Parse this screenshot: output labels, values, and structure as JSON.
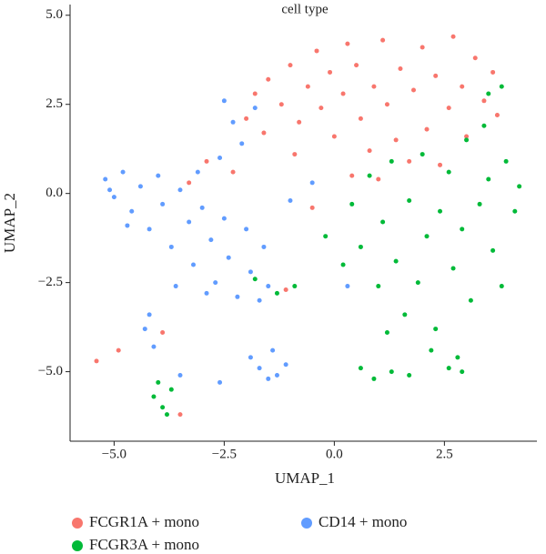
{
  "chart_data": {
    "type": "scatter",
    "title": "cell type",
    "x_label": "UMAP_1",
    "y_label": "UMAP_2",
    "xlim": [
      -6,
      4.6
    ],
    "ylim": [
      -6.95,
      5.3
    ],
    "xticks": [
      {
        "value": -5,
        "label": "−5.0"
      },
      {
        "value": -2.5,
        "label": "−2.5"
      },
      {
        "value": 0,
        "label": "0.0"
      },
      {
        "value": 2.5,
        "label": "2.5"
      }
    ],
    "yticks": [
      {
        "value": 5,
        "label": "5.0"
      },
      {
        "value": 2.5,
        "label": "2.5"
      },
      {
        "value": 0,
        "label": "0.0"
      },
      {
        "value": -2.5,
        "label": "−2.5"
      },
      {
        "value": -5,
        "label": "−5.0"
      }
    ],
    "grid": false,
    "legend": "bottom",
    "series": [
      {
        "name": "FCGR1A + mono",
        "color": "#F8766D",
        "x": [
          -1.8,
          -1.5,
          -1.2,
          -1.0,
          -0.8,
          -0.6,
          -0.4,
          -0.3,
          -0.1,
          0.0,
          0.2,
          0.3,
          0.5,
          0.6,
          0.8,
          0.9,
          1.1,
          1.2,
          1.4,
          1.5,
          1.7,
          1.8,
          2.0,
          2.1,
          2.3,
          2.4,
          2.6,
          2.7,
          2.9,
          3.0,
          3.2,
          3.4,
          3.6,
          3.7,
          -2.0,
          -1.6,
          -0.9,
          -2.3,
          -2.9,
          -3.3,
          0.4,
          1.0,
          -0.5,
          -1.1,
          -5.4,
          -4.9,
          -3.9,
          -3.5
        ],
        "values": [
          2.8,
          3.2,
          2.5,
          3.6,
          2.0,
          3.0,
          4.0,
          2.4,
          3.4,
          1.6,
          2.8,
          4.2,
          3.6,
          2.1,
          1.2,
          3.0,
          4.3,
          2.5,
          1.5,
          3.5,
          0.9,
          2.9,
          4.1,
          1.8,
          3.3,
          0.8,
          2.4,
          4.4,
          3.0,
          1.6,
          3.8,
          2.6,
          3.4,
          2.2,
          2.1,
          1.7,
          1.1,
          0.6,
          0.9,
          0.3,
          0.5,
          0.4,
          -0.4,
          -2.7,
          -4.7,
          -4.4,
          -3.9,
          -6.2
        ]
      },
      {
        "name": "FCGR3A + mono",
        "color": "#00BA38",
        "x": [
          0.4,
          0.6,
          0.8,
          1.0,
          1.1,
          1.3,
          1.4,
          1.6,
          1.7,
          1.9,
          2.0,
          2.1,
          2.3,
          2.4,
          2.6,
          2.7,
          2.9,
          3.0,
          3.1,
          3.3,
          3.5,
          3.6,
          3.8,
          3.9,
          4.1,
          4.2,
          3.4,
          2.2,
          1.2,
          0.6,
          0.9,
          1.3,
          1.7,
          2.6,
          2.9,
          2.8,
          0.2,
          -0.2,
          -0.9,
          -1.3,
          -1.8,
          -4.0,
          -4.1,
          -3.9,
          -3.8,
          -3.7,
          3.5,
          3.8
        ],
        "values": [
          -0.3,
          -1.5,
          0.5,
          -2.6,
          -0.8,
          0.9,
          -1.9,
          -3.4,
          -0.2,
          -2.5,
          1.1,
          -1.2,
          -3.8,
          -0.5,
          0.6,
          -2.1,
          -1.0,
          1.5,
          -3.0,
          -0.3,
          0.4,
          -1.6,
          -2.6,
          0.9,
          -0.5,
          0.2,
          1.9,
          -4.4,
          -3.9,
          -4.9,
          -5.2,
          -5.0,
          -5.1,
          -4.9,
          -5.0,
          -4.6,
          -2.0,
          -1.2,
          -2.6,
          -2.8,
          -2.4,
          -5.3,
          -5.7,
          -6.0,
          -6.2,
          -5.5,
          2.8,
          3.0
        ]
      },
      {
        "name": "CD14 + mono",
        "color": "#619CFF",
        "x": [
          -5.2,
          -5.0,
          -4.8,
          -4.6,
          -4.4,
          -4.2,
          -4.0,
          -3.9,
          -3.7,
          -3.5,
          -3.3,
          -3.2,
          -3.0,
          -2.8,
          -2.7,
          -2.5,
          -2.4,
          -2.2,
          -2.0,
          -1.9,
          -1.7,
          -1.6,
          -1.5,
          -3.6,
          -2.9,
          -2.3,
          -2.1,
          -2.6,
          -1.8,
          -2.5,
          -1.9,
          -1.7,
          -1.5,
          -1.3,
          -1.1,
          -1.4,
          -4.2,
          -4.3,
          -4.1,
          -3.5,
          -2.6,
          -0.5,
          -1.0,
          -4.7,
          -5.1,
          -3.1,
          0.3
        ],
        "values": [
          0.4,
          -0.1,
          0.6,
          -0.5,
          0.2,
          -1.0,
          0.5,
          -0.3,
          -1.5,
          0.1,
          -0.8,
          -2.0,
          -0.4,
          -1.3,
          -2.5,
          -0.7,
          -1.8,
          -2.9,
          -1.0,
          -2.2,
          -3.0,
          -1.5,
          -2.6,
          -2.6,
          -2.8,
          2.0,
          1.4,
          1.0,
          2.4,
          2.6,
          -4.6,
          -4.9,
          -5.2,
          -5.1,
          -4.8,
          -4.4,
          -3.4,
          -3.8,
          -4.3,
          -5.1,
          -5.3,
          0.3,
          -0.2,
          -0.9,
          0.1,
          0.6,
          -2.6
        ]
      }
    ]
  }
}
